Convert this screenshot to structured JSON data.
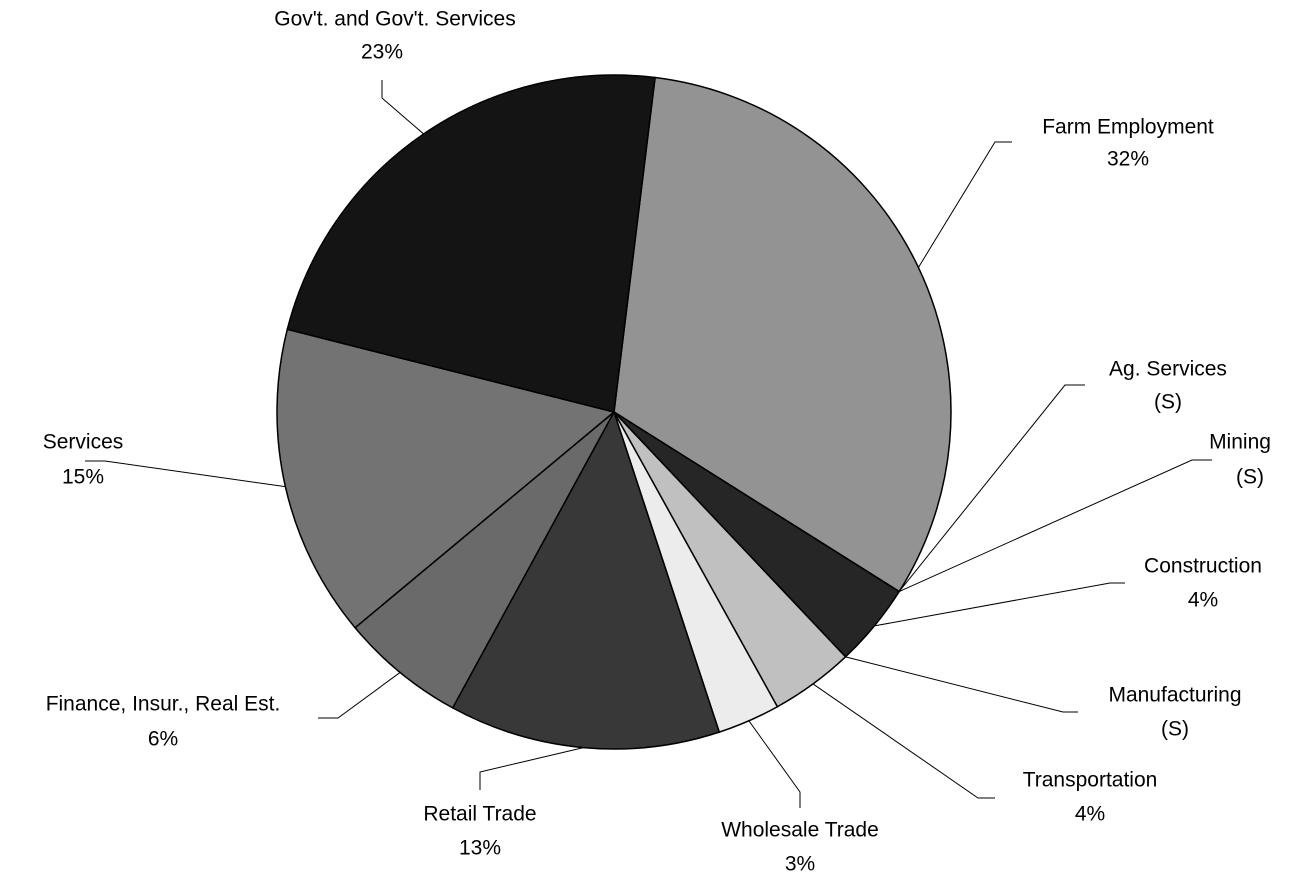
{
  "chart_data": {
    "type": "pie",
    "categories": [
      "Farm Employment",
      "Ag. Services",
      "Mining",
      "Construction",
      "Manufacturing",
      "Transportation",
      "Wholesale Trade",
      "Retail Trade",
      "Finance, Insur., Real Est.",
      "Services",
      "Gov't. and Gov't. Services"
    ],
    "values": [
      32,
      0,
      0,
      4,
      0,
      4,
      3,
      13,
      6,
      15,
      23
    ],
    "value_labels": [
      "32%",
      "(S)",
      "(S)",
      "4%",
      "(S)",
      "4%",
      "3%",
      "13%",
      "6%",
      "15%",
      "23%"
    ],
    "colors": [
      "#939393",
      "#505050",
      "#505050",
      "#262626",
      "#a0a0a0",
      "#c0c0c0",
      "#ececec",
      "#383838",
      "#6a6a6a",
      "#737373",
      "#141414"
    ]
  }
}
